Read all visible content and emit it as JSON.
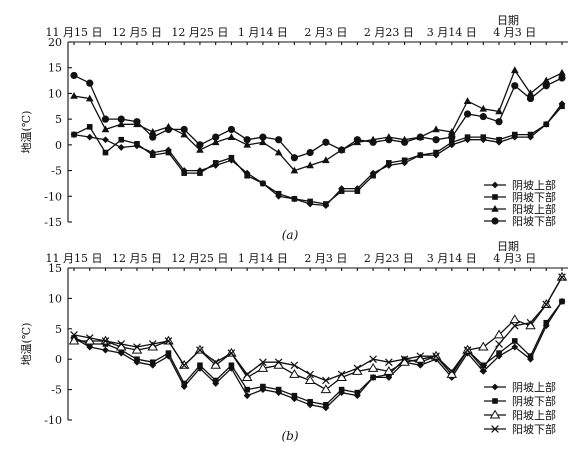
{
  "chart_data": [
    {
      "type": "line",
      "caption": "(a)",
      "ylabel": "地温(℃)",
      "xlabel_top": "日期",
      "ylim": [
        -15,
        20
      ],
      "yticks": [
        -15,
        -10,
        -5,
        0,
        5,
        10,
        15,
        20
      ],
      "x_labels": [
        "11 月15 日",
        "12 月5 日",
        "12 月25 日",
        "1 月14 日",
        "2 月3 日",
        "2 月23 日",
        "3 月14 日",
        "4 月3 日"
      ],
      "x_label_pos": [
        0,
        4,
        8,
        12,
        16,
        20,
        24,
        28
      ],
      "x": [
        0,
        1,
        2,
        3,
        4,
        5,
        6,
        7,
        8,
        9,
        10,
        11,
        12,
        13,
        14,
        15,
        16,
        17,
        18,
        19,
        20,
        21,
        22,
        23,
        24,
        25,
        26,
        27,
        28,
        29,
        30,
        31
      ],
      "series": [
        {
          "name": "阴坡上部",
          "marker": "diamond",
          "values": [
            2,
            1.5,
            1,
            -0.5,
            -0.2,
            -1.5,
            -1,
            -5,
            -5,
            -4,
            -3,
            -5.5,
            -7.5,
            -10,
            -10.5,
            -11.5,
            -11.8,
            -8.5,
            -8.5,
            -5.5,
            -4,
            -3.5,
            -2,
            -2,
            0,
            1,
            1,
            0.5,
            1.5,
            1.5,
            4,
            8
          ]
        },
        {
          "name": "阴坡下部",
          "marker": "square",
          "values": [
            2,
            3.5,
            -1.5,
            1,
            0.2,
            -2,
            -1.5,
            -5.5,
            -5.5,
            -3.5,
            -2.5,
            -6,
            -7.5,
            -9.5,
            -10.5,
            -11,
            -11.5,
            -9,
            -9,
            -6,
            -3.5,
            -3,
            -2,
            -1.5,
            0.5,
            1.5,
            1.5,
            1,
            2,
            2,
            4,
            7.5
          ]
        },
        {
          "name": "阳坡上部",
          "marker": "triangle",
          "values": [
            9.5,
            9,
            3,
            4,
            4,
            2.5,
            3.5,
            2,
            -1,
            0.5,
            1.5,
            0,
            0.5,
            -1.5,
            -5,
            -4,
            -3,
            -1,
            0.5,
            1,
            1.5,
            1,
            1.5,
            3,
            2.5,
            8.5,
            7,
            6.5,
            14.5,
            10,
            12.5,
            14
          ]
        },
        {
          "name": "阳坡下部",
          "marker": "circle",
          "values": [
            13.5,
            12,
            5,
            5,
            4.5,
            1.5,
            3,
            3,
            0,
            1.5,
            3,
            1,
            1.5,
            1,
            -2.5,
            -1.5,
            0.5,
            -1,
            1,
            0.5,
            1,
            0.5,
            1.5,
            1,
            1.5,
            6,
            5.5,
            4.5,
            11.5,
            9,
            11.5,
            13
          ]
        }
      ]
    },
    {
      "type": "line",
      "caption": "(b)",
      "ylabel": "地温(℃)",
      "xlabel_top": "日期",
      "ylim": [
        -10,
        15
      ],
      "yticks": [
        -10,
        -5,
        0,
        5,
        10,
        15
      ],
      "x_labels": [
        "11 月15 日",
        "12 月5 日",
        "12 月25 日",
        "1 月14 日",
        "2 月3 日",
        "2 月23 日",
        "3 月14 日",
        "4 月3 日"
      ],
      "x_label_pos": [
        0,
        4,
        8,
        12,
        16,
        20,
        24,
        28
      ],
      "x": [
        0,
        1,
        2,
        3,
        4,
        5,
        6,
        7,
        8,
        9,
        10,
        11,
        12,
        13,
        14,
        15,
        16,
        17,
        18,
        19,
        20,
        21,
        22,
        23,
        24,
        25,
        26,
        27,
        28,
        29,
        30,
        31
      ],
      "series": [
        {
          "name": "阴坡上部",
          "marker": "diamond",
          "values": [
            3.5,
            2,
            1.5,
            1,
            -0.5,
            -1,
            0.5,
            -4.5,
            -1.5,
            -4,
            -1.5,
            -6,
            -5,
            -5.5,
            -6.5,
            -7.5,
            -8,
            -5.5,
            -6,
            -3,
            -3,
            -0.5,
            -1,
            0,
            -3,
            1,
            -2,
            0.5,
            2,
            0,
            5.5,
            9.5
          ]
        },
        {
          "name": "阴坡下部",
          "marker": "square",
          "values": [
            3.5,
            2.5,
            2.5,
            1.5,
            0,
            -0.5,
            1,
            -4,
            -1,
            -3.5,
            -1,
            -5,
            -4.5,
            -5,
            -6,
            -7,
            -7.5,
            -5,
            -5.5,
            -3,
            -2.5,
            0,
            -0.5,
            0.5,
            -2.5,
            1.5,
            -1,
            1,
            3,
            0.5,
            6,
            9.5
          ]
        },
        {
          "name": "阳坡上部",
          "marker": "open-triangle",
          "values": [
            3,
            3,
            3,
            2,
            1.5,
            2,
            3,
            -1,
            1.5,
            -1,
            1,
            -3,
            -1.5,
            -1,
            -2.5,
            -3.5,
            -5,
            -3,
            -2,
            -1.5,
            -2,
            -0.5,
            0,
            0.5,
            -2.5,
            1.5,
            2,
            4,
            6.5,
            5.5,
            9,
            13.5
          ]
        },
        {
          "name": "阳坡下部",
          "marker": "x",
          "values": [
            4,
            3.5,
            3,
            2.5,
            2,
            2.5,
            3,
            -1,
            1.5,
            -0.5,
            1,
            -2.5,
            -0.5,
            -0.5,
            -1,
            -2.5,
            -3.5,
            -2.5,
            -1.5,
            0,
            -0.5,
            0,
            0.5,
            0.5,
            -2,
            1.5,
            -1.5,
            2.5,
            5.5,
            6,
            9,
            13.5
          ]
        }
      ]
    }
  ]
}
